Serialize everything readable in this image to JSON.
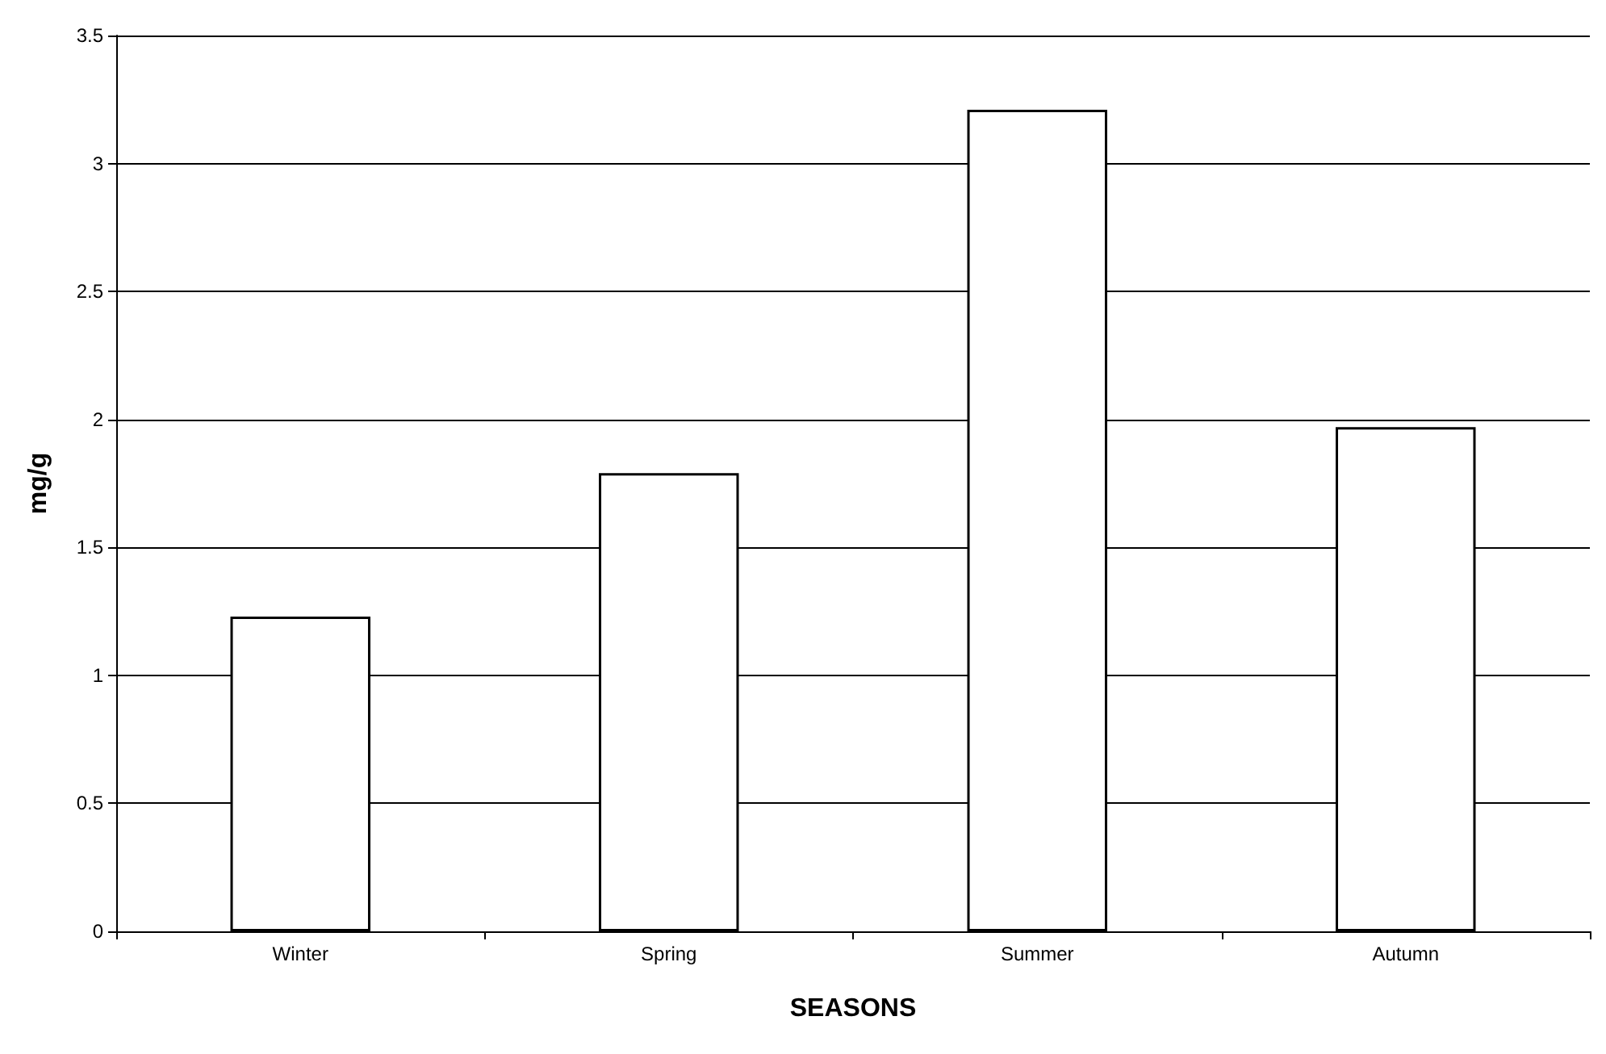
{
  "chart_data": {
    "type": "bar",
    "xlabel": "SEASONS",
    "ylabel": "mg/g",
    "categories": [
      "Winter",
      "Spring",
      "Summer",
      "Autumn"
    ],
    "values": [
      1.23,
      1.79,
      3.21,
      1.97
    ],
    "color": "#ffffff",
    "ylim": [
      0,
      3.5
    ],
    "yticks": [
      0,
      0.5,
      1,
      1.5,
      2,
      2.5,
      3,
      3.5
    ],
    "grid": "y"
  }
}
